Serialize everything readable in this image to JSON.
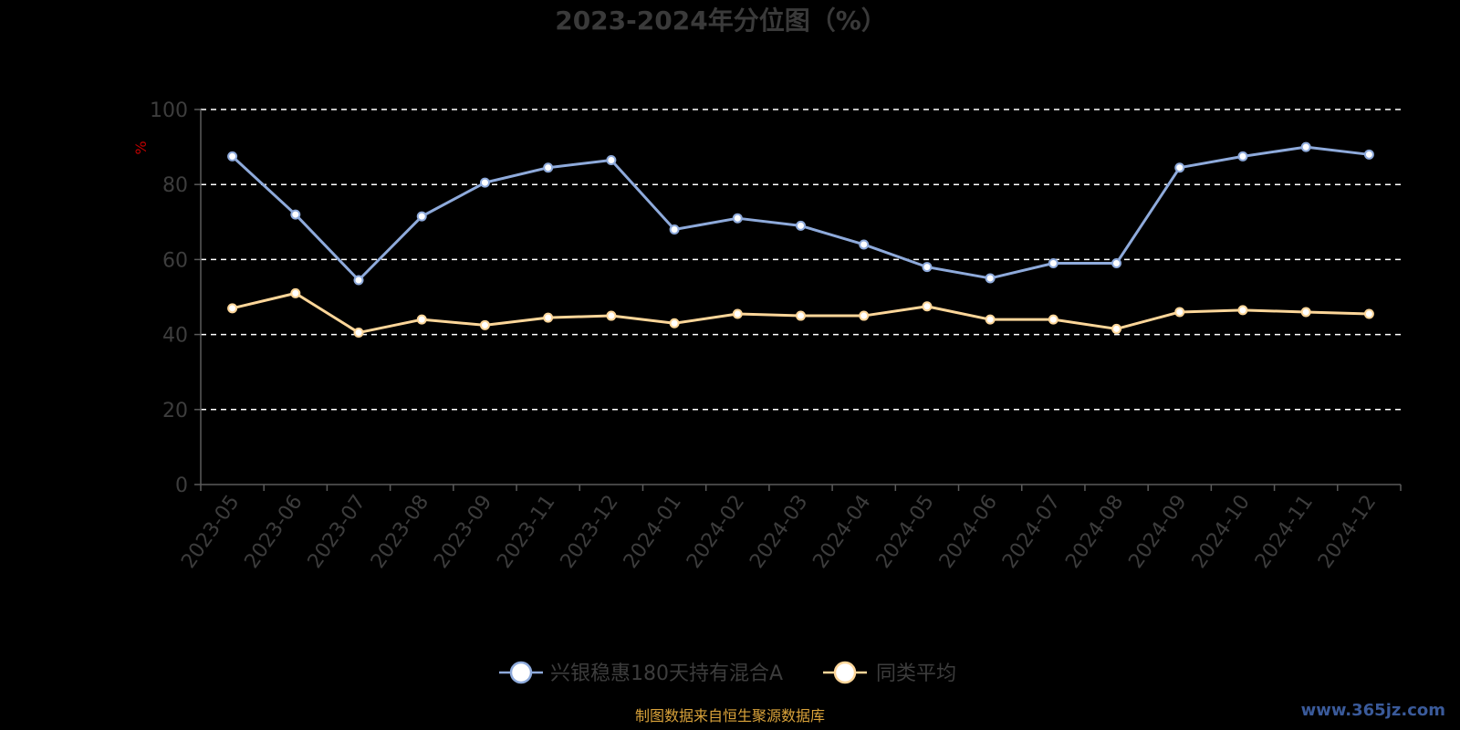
{
  "chart_data": {
    "type": "line",
    "title": "2023-2024年分位图（%）",
    "ylabel": "%",
    "xlabel": "",
    "ylim": [
      0,
      100
    ],
    "yticks": [
      0,
      20,
      40,
      60,
      80,
      100
    ],
    "grid": true,
    "legend_position": "bottom",
    "categories": [
      "2023-05",
      "2023-06",
      "2023-07",
      "2023-08",
      "2023-09",
      "2023-11",
      "2023-12",
      "2024-01",
      "2024-02",
      "2024-03",
      "2024-04",
      "2024-05",
      "2024-06",
      "2024-07",
      "2024-08",
      "2024-09",
      "2024-10",
      "2024-11",
      "2024-12"
    ],
    "series": [
      {
        "name": "兴银稳惠180天持有混合A",
        "color": "#8eaadb",
        "values": [
          87.5,
          72,
          54.5,
          71.5,
          80.5,
          84.5,
          86.5,
          68,
          71,
          69,
          64,
          58,
          55,
          59,
          59,
          84.5,
          87.5,
          90,
          88
        ]
      },
      {
        "name": "同类平均",
        "color": "#fdd699",
        "values": [
          47,
          51,
          40.5,
          44,
          42.5,
          44.5,
          45,
          43,
          45.5,
          45,
          45,
          47.5,
          44,
          44,
          41.5,
          46,
          46.5,
          46,
          45.5
        ]
      }
    ]
  },
  "footer": {
    "source": "制图数据来自恒生聚源数据库",
    "watermark": "www.365jz.com"
  }
}
